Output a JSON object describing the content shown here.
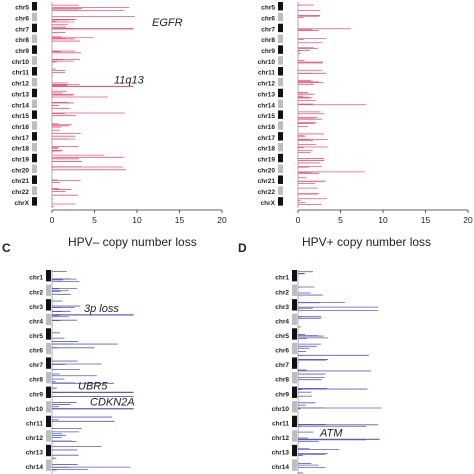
{
  "chart_data": [
    {
      "type": "bar",
      "orientation": "horizontal",
      "color": "#e8577a",
      "chromosomes": [
        "chr5",
        "chr6",
        "chr7",
        "chr8",
        "chr9",
        "chr10",
        "chr11",
        "chr12",
        "chr13",
        "chr14",
        "chr15",
        "chr16",
        "chr17",
        "chr18",
        "chr19",
        "chr20",
        "chr21",
        "chr22",
        "chrX"
      ],
      "xlim": [
        0,
        20
      ],
      "xticks": [
        "0",
        "5",
        "10",
        "15",
        "20"
      ],
      "annotations": [
        "EGFR",
        "11q13"
      ]
    },
    {
      "type": "bar",
      "orientation": "horizontal",
      "color": "#e8577a",
      "chromosomes": [
        "chr5",
        "chr6",
        "chr7",
        "chr8",
        "chr9",
        "chr10",
        "chr11",
        "chr12",
        "chr13",
        "chr14",
        "chr15",
        "chr16",
        "chr17",
        "chr18",
        "chr19",
        "chr20",
        "chr21",
        "chr22",
        "chrX"
      ],
      "xlim": [
        0,
        20
      ],
      "xticks": [
        "0",
        "5",
        "10",
        "15",
        "20"
      ],
      "annotations": []
    },
    {
      "panel": "C",
      "title": "HPV– copy number loss",
      "type": "bar",
      "orientation": "horizontal",
      "color": "#5b5bbf",
      "chromosomes": [
        "chr1",
        "chr2",
        "chr3",
        "chr4",
        "chr5",
        "chr6",
        "chr7",
        "chr8",
        "chr9",
        "chr10",
        "chr11",
        "chr12",
        "chr13",
        "chr14"
      ],
      "annotations": [
        "3p loss",
        "UBR5",
        "CDKN2A"
      ]
    },
    {
      "panel": "D",
      "title": "HPV+ copy number loss",
      "type": "bar",
      "orientation": "horizontal",
      "color": "#5b5bbf",
      "chromosomes": [
        "chr1",
        "chr2",
        "chr3",
        "chr4",
        "chr5",
        "chr6",
        "chr7",
        "chr8",
        "chr9",
        "chr10",
        "chr11",
        "chr12",
        "chr13",
        "chr14"
      ],
      "annotations": [
        "ATM"
      ]
    }
  ]
}
